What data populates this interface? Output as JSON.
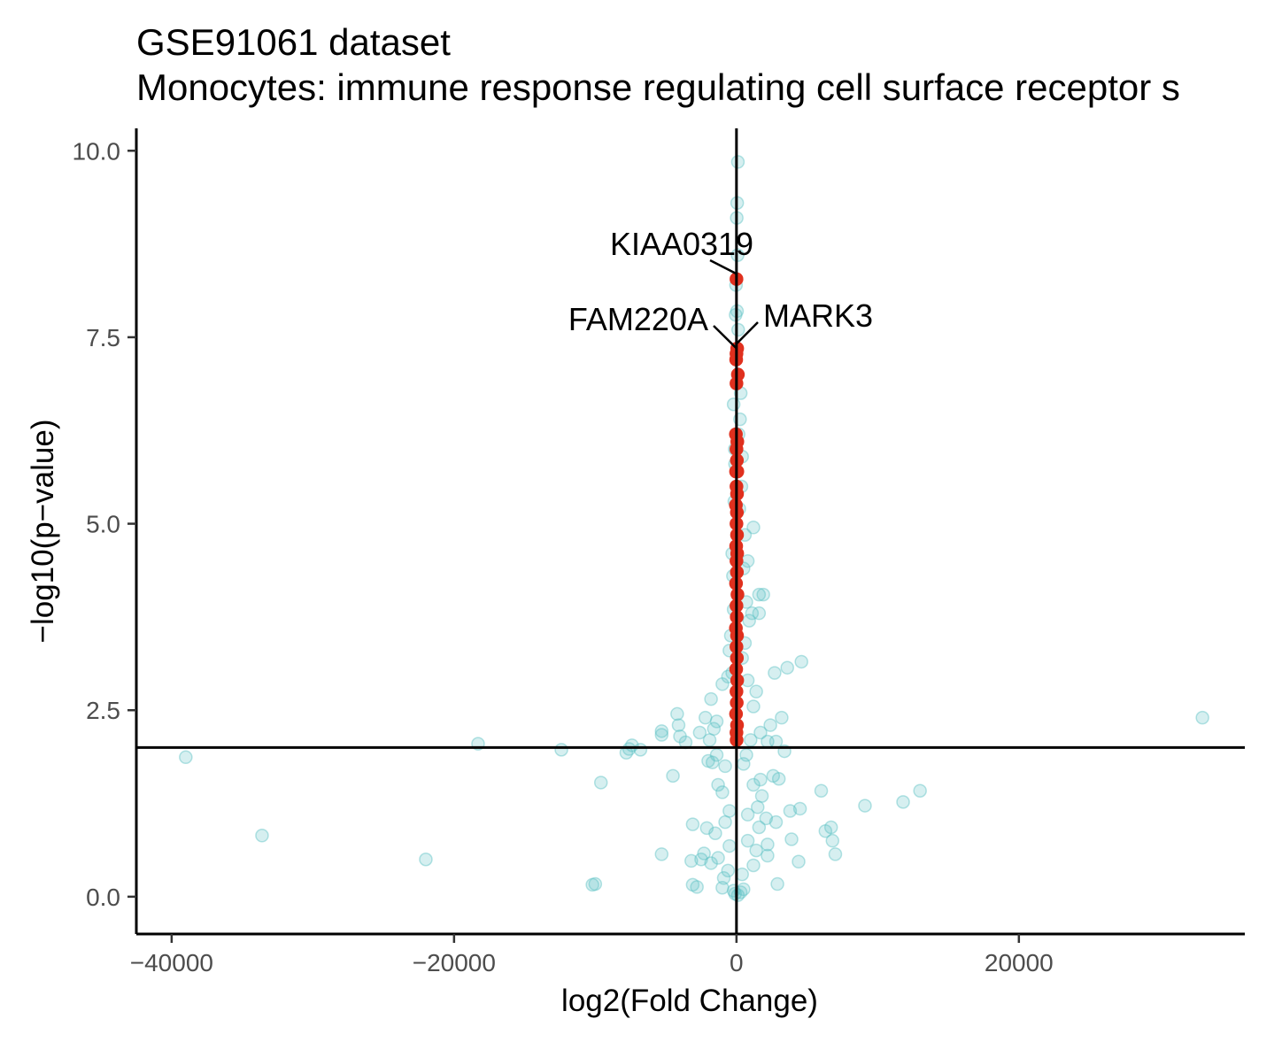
{
  "chart_data": {
    "type": "scatter",
    "title": "GSE91061 dataset",
    "subtitle": "Monocytes: immune response regulating cell surface receptor s",
    "xlabel": "log2(Fold Change)",
    "ylabel": "−log10(p−value)",
    "xlim": [
      -42500,
      36000
    ],
    "ylim": [
      -0.5,
      10.3
    ],
    "x_ticks": [
      {
        "value": -40000,
        "label": "−40000"
      },
      {
        "value": -20000,
        "label": "−20000"
      },
      {
        "value": 0,
        "label": "0"
      },
      {
        "value": 20000,
        "label": "20000"
      }
    ],
    "y_ticks": [
      {
        "value": 0,
        "label": "0.0"
      },
      {
        "value": 2.5,
        "label": "2.5"
      },
      {
        "value": 5,
        "label": "5.0"
      },
      {
        "value": 7.5,
        "label": "7.5"
      },
      {
        "value": 10,
        "label": "10.0"
      }
    ],
    "reference_lines": {
      "vertical_x": 0,
      "horizontal_y": 2
    },
    "grid": false,
    "legend": "none",
    "colors": {
      "background_points": "#5BC0C4",
      "highlight_points": "#E0301E",
      "axis": "#000000",
      "tick_label": "#4d4d4d"
    },
    "series": [
      {
        "role": "background",
        "points": [
          {
            "x": 100,
            "y": 9.85
          },
          {
            "x": 50,
            "y": 9.3
          },
          {
            "x": 20,
            "y": 9.1
          },
          {
            "x": 80,
            "y": 8.6
          },
          {
            "x": -30,
            "y": 8.2
          },
          {
            "x": 40,
            "y": 7.85
          },
          {
            "x": -60,
            "y": 7.8
          },
          {
            "x": 120,
            "y": 7.6
          },
          {
            "x": 300,
            "y": 6.75
          },
          {
            "x": -200,
            "y": 6.6
          },
          {
            "x": 250,
            "y": 6.4
          },
          {
            "x": 150,
            "y": 6.2
          },
          {
            "x": -120,
            "y": 6.0
          },
          {
            "x": 400,
            "y": 5.9
          },
          {
            "x": -100,
            "y": 5.8
          },
          {
            "x": 350,
            "y": 5.5
          },
          {
            "x": -150,
            "y": 5.3
          },
          {
            "x": 200,
            "y": 5.2
          },
          {
            "x": 1200,
            "y": 4.95
          },
          {
            "x": 600,
            "y": 4.85
          },
          {
            "x": -300,
            "y": 4.6
          },
          {
            "x": 800,
            "y": 4.5
          },
          {
            "x": 500,
            "y": 4.4
          },
          {
            "x": -250,
            "y": 4.3
          },
          {
            "x": 1900,
            "y": 4.05
          },
          {
            "x": 1600,
            "y": 4.05
          },
          {
            "x": 700,
            "y": 3.95
          },
          {
            "x": -200,
            "y": 3.85
          },
          {
            "x": 1100,
            "y": 3.8
          },
          {
            "x": 1600,
            "y": 3.8
          },
          {
            "x": 900,
            "y": 3.7
          },
          {
            "x": -400,
            "y": 3.5
          },
          {
            "x": 600,
            "y": 3.4
          },
          {
            "x": -500,
            "y": 3.3
          },
          {
            "x": 400,
            "y": 3.2
          },
          {
            "x": 4600,
            "y": 3.15
          },
          {
            "x": 3600,
            "y": 3.07
          },
          {
            "x": -300,
            "y": 3.0
          },
          {
            "x": 2700,
            "y": 3.0
          },
          {
            "x": -600,
            "y": 2.95
          },
          {
            "x": 800,
            "y": 2.9
          },
          {
            "x": -1000,
            "y": 2.85
          },
          {
            "x": 1400,
            "y": 2.75
          },
          {
            "x": -1800,
            "y": 2.65
          },
          {
            "x": 1200,
            "y": 2.55
          },
          {
            "x": -4200,
            "y": 2.45
          },
          {
            "x": -2200,
            "y": 2.4
          },
          {
            "x": 3200,
            "y": 2.4
          },
          {
            "x": 33000,
            "y": 2.4
          },
          {
            "x": -1400,
            "y": 2.35
          },
          {
            "x": 2400,
            "y": 2.3
          },
          {
            "x": -4100,
            "y": 2.3
          },
          {
            "x": -1600,
            "y": 2.25
          },
          {
            "x": -5300,
            "y": 2.22
          },
          {
            "x": -2600,
            "y": 2.2
          },
          {
            "x": 1700,
            "y": 2.2
          },
          {
            "x": -4000,
            "y": 2.15
          },
          {
            "x": -5300,
            "y": 2.17
          },
          {
            "x": -1900,
            "y": 2.1
          },
          {
            "x": 1000,
            "y": 2.1
          },
          {
            "x": 2800,
            "y": 2.08
          },
          {
            "x": 2200,
            "y": 2.08
          },
          {
            "x": -18300,
            "y": 2.05
          },
          {
            "x": -7400,
            "y": 2.03
          },
          {
            "x": -3600,
            "y": 2.07
          },
          {
            "x": -7600,
            "y": 1.98
          },
          {
            "x": -12400,
            "y": 1.97
          },
          {
            "x": -6800,
            "y": 1.97
          },
          {
            "x": -7800,
            "y": 1.93
          },
          {
            "x": 3400,
            "y": 1.95
          },
          {
            "x": -1400,
            "y": 1.9
          },
          {
            "x": 700,
            "y": 1.9
          },
          {
            "x": -39000,
            "y": 1.87
          },
          {
            "x": -2000,
            "y": 1.82
          },
          {
            "x": -1700,
            "y": 1.8
          },
          {
            "x": 500,
            "y": 1.78
          },
          {
            "x": -800,
            "y": 1.75
          },
          {
            "x": 2600,
            "y": 1.62
          },
          {
            "x": -4500,
            "y": 1.62
          },
          {
            "x": 3000,
            "y": 1.58
          },
          {
            "x": 1700,
            "y": 1.57
          },
          {
            "x": -9600,
            "y": 1.53
          },
          {
            "x": -1300,
            "y": 1.5
          },
          {
            "x": 1200,
            "y": 1.5
          },
          {
            "x": 6000,
            "y": 1.42
          },
          {
            "x": 13000,
            "y": 1.42
          },
          {
            "x": -1000,
            "y": 1.4
          },
          {
            "x": 1800,
            "y": 1.35
          },
          {
            "x": 11800,
            "y": 1.27
          },
          {
            "x": 9100,
            "y": 1.22
          },
          {
            "x": 1500,
            "y": 1.2
          },
          {
            "x": 4500,
            "y": 1.18
          },
          {
            "x": 3800,
            "y": 1.15
          },
          {
            "x": -500,
            "y": 1.15
          },
          {
            "x": 800,
            "y": 1.1
          },
          {
            "x": 2100,
            "y": 1.05
          },
          {
            "x": -800,
            "y": 1.0
          },
          {
            "x": 2800,
            "y": 1.0
          },
          {
            "x": -3100,
            "y": 0.97
          },
          {
            "x": 6700,
            "y": 0.93
          },
          {
            "x": 1600,
            "y": 0.93
          },
          {
            "x": 6300,
            "y": 0.88
          },
          {
            "x": -2100,
            "y": 0.92
          },
          {
            "x": -1500,
            "y": 0.85
          },
          {
            "x": -33600,
            "y": 0.82
          },
          {
            "x": 3900,
            "y": 0.77
          },
          {
            "x": 6800,
            "y": 0.75
          },
          {
            "x": 800,
            "y": 0.75
          },
          {
            "x": 2200,
            "y": 0.7
          },
          {
            "x": -500,
            "y": 0.68
          },
          {
            "x": 1400,
            "y": 0.62
          },
          {
            "x": -2300,
            "y": 0.58
          },
          {
            "x": -5300,
            "y": 0.57
          },
          {
            "x": 7000,
            "y": 0.57
          },
          {
            "x": 2200,
            "y": 0.55
          },
          {
            "x": -1300,
            "y": 0.52
          },
          {
            "x": -22000,
            "y": 0.5
          },
          {
            "x": -3200,
            "y": 0.48
          },
          {
            "x": 4400,
            "y": 0.47
          },
          {
            "x": -2500,
            "y": 0.5
          },
          {
            "x": -1800,
            "y": 0.45
          },
          {
            "x": 1200,
            "y": 0.42
          },
          {
            "x": -600,
            "y": 0.35
          },
          {
            "x": 400,
            "y": 0.3
          },
          {
            "x": -900,
            "y": 0.25
          },
          {
            "x": -10000,
            "y": 0.17
          },
          {
            "x": -10200,
            "y": 0.16
          },
          {
            "x": -3100,
            "y": 0.16
          },
          {
            "x": 2900,
            "y": 0.17
          },
          {
            "x": -2800,
            "y": 0.13
          },
          {
            "x": -1000,
            "y": 0.12
          },
          {
            "x": 500,
            "y": 0.1
          },
          {
            "x": -200,
            "y": 0.08
          },
          {
            "x": 300,
            "y": 0.06
          },
          {
            "x": -100,
            "y": 0.04
          },
          {
            "x": 100,
            "y": 0.02
          }
        ]
      },
      {
        "role": "highlighted",
        "points": [
          {
            "x": 0,
            "y": 8.28
          },
          {
            "x": 50,
            "y": 7.35
          },
          {
            "x": 0,
            "y": 7.28
          },
          {
            "x": -20,
            "y": 7.2
          },
          {
            "x": 100,
            "y": 7.0
          },
          {
            "x": 0,
            "y": 6.88
          },
          {
            "x": -40,
            "y": 6.2
          },
          {
            "x": 60,
            "y": 6.1
          },
          {
            "x": 0,
            "y": 6.0
          },
          {
            "x": 30,
            "y": 5.85
          },
          {
            "x": -30,
            "y": 5.7
          },
          {
            "x": 60,
            "y": 5.7
          },
          {
            "x": 0,
            "y": 5.5
          },
          {
            "x": 40,
            "y": 5.4
          },
          {
            "x": -40,
            "y": 5.25
          },
          {
            "x": 30,
            "y": 5.15
          },
          {
            "x": 0,
            "y": 5.0
          },
          {
            "x": 40,
            "y": 4.85
          },
          {
            "x": -20,
            "y": 4.7
          },
          {
            "x": 50,
            "y": 4.6
          },
          {
            "x": 0,
            "y": 4.5
          },
          {
            "x": 30,
            "y": 4.35
          },
          {
            "x": -30,
            "y": 4.2
          },
          {
            "x": 70,
            "y": 4.05
          },
          {
            "x": 0,
            "y": 3.9
          },
          {
            "x": 20,
            "y": 3.75
          },
          {
            "x": -40,
            "y": 3.6
          },
          {
            "x": 40,
            "y": 3.5
          },
          {
            "x": 0,
            "y": 3.35
          },
          {
            "x": 30,
            "y": 3.2
          },
          {
            "x": -20,
            "y": 3.05
          },
          {
            "x": 50,
            "y": 2.9
          },
          {
            "x": 0,
            "y": 2.75
          },
          {
            "x": 20,
            "y": 2.6
          },
          {
            "x": -30,
            "y": 2.45
          },
          {
            "x": 40,
            "y": 2.3
          },
          {
            "x": 0,
            "y": 2.2
          },
          {
            "x": 10,
            "y": 2.1
          }
        ]
      }
    ],
    "annotations": [
      {
        "text": "KIAA0319",
        "x": 0,
        "y": 8.28
      },
      {
        "text": "FAM220A",
        "x": 0,
        "y": 7.28
      },
      {
        "text": "MARK3",
        "x": 50,
        "y": 7.35
      }
    ]
  }
}
